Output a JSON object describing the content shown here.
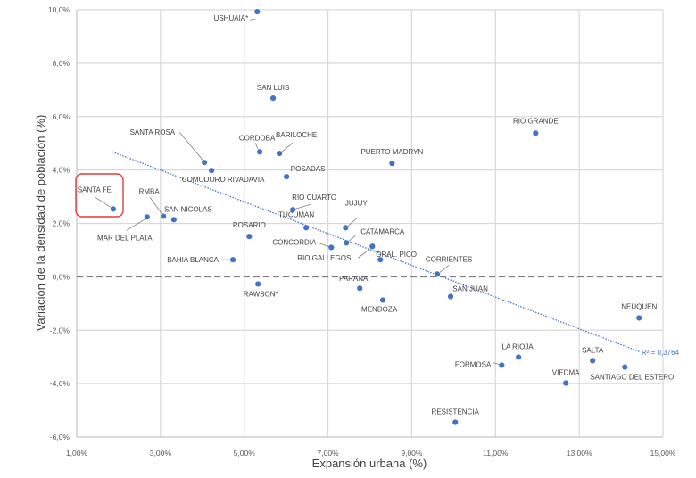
{
  "chart_data": {
    "type": "scatter",
    "title": "",
    "xlabel": "Expansión urbana (%)",
    "ylabel": "Variación de la densidad de población (%)",
    "xlim": [
      1,
      15
    ],
    "ylim": [
      -6,
      10
    ],
    "x_ticks": [
      1,
      3,
      5,
      7,
      9,
      11,
      13,
      15
    ],
    "x_tick_labels": [
      "1,00%",
      "3,00%",
      "5,00%",
      "7,00%",
      "9,00%",
      "11,00%",
      "13,00%",
      "15,00%"
    ],
    "y_ticks": [
      -6,
      -4,
      -2,
      0,
      2,
      4,
      6,
      8,
      10
    ],
    "y_tick_labels": [
      "-6,0%",
      "-4,0%",
      "-2,0%",
      "0,0%",
      "2,0%",
      "4,0%",
      "6,0%",
      "8,0%",
      "10,0%"
    ],
    "grid": true,
    "point_color": "#4472c4",
    "highlight_color": "#e03c3c",
    "highlighted_point": "SANTA FE",
    "points": [
      {
        "label": "USHUAIA*",
        "x": 5.31,
        "y": 9.93
      },
      {
        "label": "SAN LUIS",
        "x": 5.69,
        "y": 6.69
      },
      {
        "label": "RIO GRANDE",
        "x": 11.96,
        "y": 5.38
      },
      {
        "label": "SANTA ROSA",
        "x": 4.05,
        "y": 4.28
      },
      {
        "label": "COMODORO RIVADAVIA",
        "x": 4.22,
        "y": 3.98
      },
      {
        "label": "CORDOBA",
        "x": 5.37,
        "y": 4.68
      },
      {
        "label": "BARILOCHE",
        "x": 5.84,
        "y": 4.62
      },
      {
        "label": "POSADAS",
        "x": 6.01,
        "y": 3.75
      },
      {
        "label": "PUERTO MADRYN",
        "x": 8.53,
        "y": 4.25
      },
      {
        "label": "SANTA FE",
        "x": 1.87,
        "y": 2.54
      },
      {
        "label": "MAR DEL PLATA",
        "x": 2.68,
        "y": 2.24
      },
      {
        "label": "RMBA",
        "x": 3.07,
        "y": 2.27
      },
      {
        "label": "SAN NICOLAS",
        "x": 3.32,
        "y": 2.14
      },
      {
        "label": "RIO CUARTO",
        "x": 6.16,
        "y": 2.51
      },
      {
        "label": "TUCUMAN",
        "x": 6.48,
        "y": 1.84
      },
      {
        "label": "ROSARIO",
        "x": 5.12,
        "y": 1.51
      },
      {
        "label": "JUJUY",
        "x": 7.42,
        "y": 1.84
      },
      {
        "label": "CATAMARCA",
        "x": 7.44,
        "y": 1.27
      },
      {
        "label": "CONCORDIA",
        "x": 7.08,
        "y": 1.1
      },
      {
        "label": "RIO GALLEGOS",
        "x": 8.06,
        "y": 1.14
      },
      {
        "label": "GRAL. PICO",
        "x": 8.25,
        "y": 0.64
      },
      {
        "label": "BAHIA BLANCA",
        "x": 4.73,
        "y": 0.64
      },
      {
        "label": "CORRIENTES",
        "x": 9.61,
        "y": 0.1
      },
      {
        "label": "RAWSON*",
        "x": 5.33,
        "y": -0.27
      },
      {
        "label": "PARANA",
        "x": 7.76,
        "y": -0.43
      },
      {
        "label": "MENDOZA",
        "x": 8.31,
        "y": -0.87
      },
      {
        "label": "SAN JUAN",
        "x": 9.93,
        "y": -0.74
      },
      {
        "label": "NEUQUEN",
        "x": 14.43,
        "y": -1.54
      },
      {
        "label": "LA RIOJA",
        "x": 11.55,
        "y": -3.01
      },
      {
        "label": "FORMOSA",
        "x": 11.15,
        "y": -3.31
      },
      {
        "label": "SALTA",
        "x": 13.32,
        "y": -3.14
      },
      {
        "label": "SANTIAGO DEL ESTERO",
        "x": 14.09,
        "y": -3.38
      },
      {
        "label": "VIEDMA",
        "x": 12.68,
        "y": -3.98
      },
      {
        "label": "RESISTENCIA",
        "x": 10.04,
        "y": -5.45
      }
    ],
    "trendline": {
      "type": "linear",
      "x_start": 1.85,
      "y_start": 4.68,
      "x_end": 14.45,
      "y_end": -2.81,
      "r2_label": "R² = 0,3764",
      "color": "#4472c4"
    },
    "zero_line": {
      "y": 0,
      "style": "dashed"
    }
  }
}
